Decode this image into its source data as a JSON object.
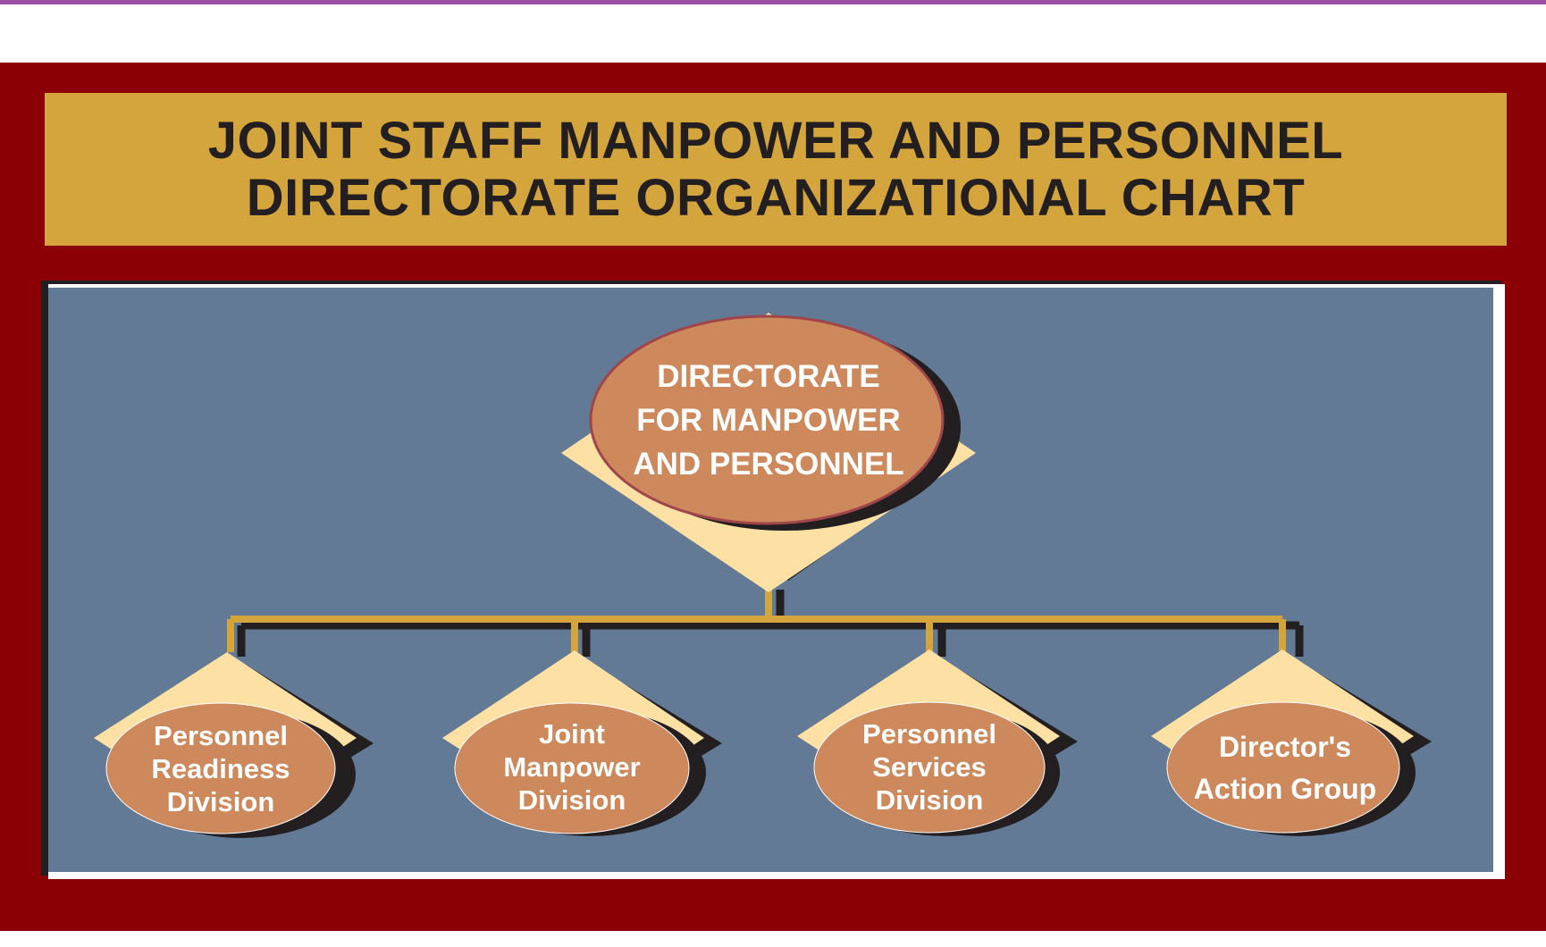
{
  "title": {
    "lines": [
      "JOINT STAFF MANPOWER AND PERSONNEL",
      "DIRECTORATE ORGANIZATIONAL CHART"
    ]
  },
  "org": {
    "root": {
      "label_lines": [
        "DIRECTORATE",
        "FOR MANPOWER",
        "AND PERSONNEL"
      ]
    },
    "children": [
      {
        "label_lines": [
          "Personnel",
          "Readiness",
          "Division"
        ]
      },
      {
        "label_lines": [
          "Joint",
          "Manpower",
          "Division"
        ]
      },
      {
        "label_lines": [
          "Personnel",
          "Services",
          "Division"
        ]
      },
      {
        "label_lines": [
          "Director's",
          "Action Group"
        ]
      }
    ]
  },
  "colors": {
    "frame": "#8b0005",
    "title_band": "#d4a53d",
    "panel": "#637a96",
    "diamond": "#fde1a4",
    "ellipse": "#cd885b",
    "ellipse_outline": "#a0454a",
    "connector": "#d4a53d",
    "shadow": "#231f20",
    "top_rule": "#9b4ea3",
    "title_text": "#231f20",
    "node_text": "#ffffff"
  }
}
